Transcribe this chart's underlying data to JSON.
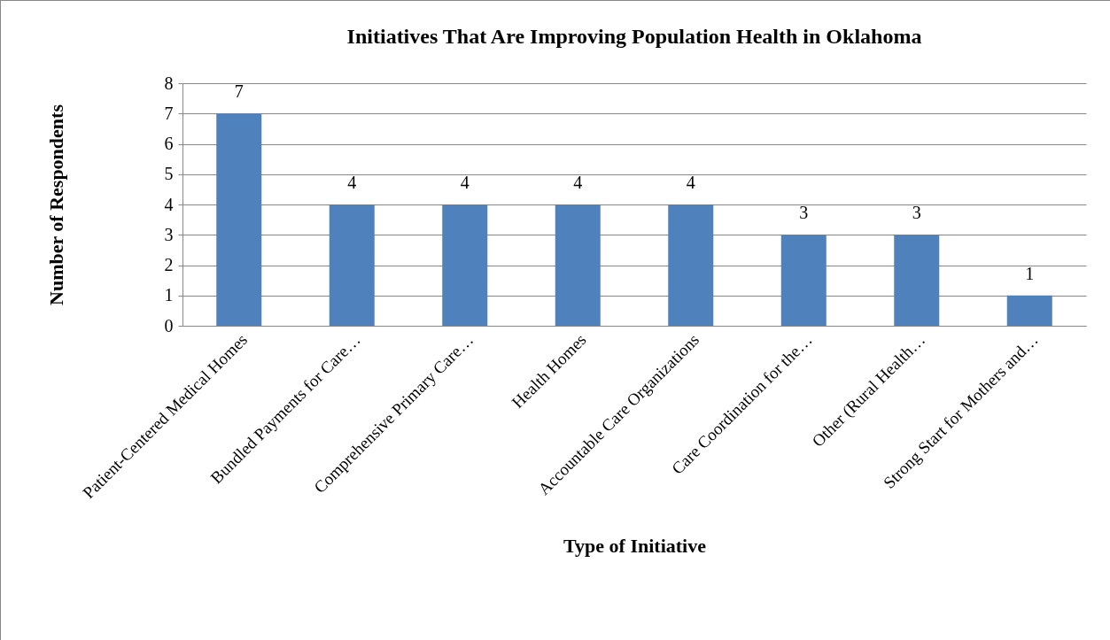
{
  "chart_data": {
    "type": "bar",
    "title": "Initiatives That Are Improving Population Health in Oklahoma",
    "xlabel": "Type of Initiative",
    "ylabel": "Number of Respondents",
    "categories": [
      "Patient-Centered Medical Homes",
      "Bundled Payments for Care…",
      "Comprehensive Primary Care…",
      "Health Homes",
      "Accountable Care Organizations",
      "Care Coordination for the…",
      "Other (Rural Health…",
      "Strong Start for Mothers and…"
    ],
    "values": [
      7,
      4,
      4,
      4,
      4,
      3,
      3,
      1
    ],
    "color": "#4f81bd",
    "ylim": [
      0,
      8
    ],
    "yticks": [
      0,
      1,
      2,
      3,
      4,
      5,
      6,
      7,
      8
    ],
    "grid": "y",
    "data_labels": true
  }
}
